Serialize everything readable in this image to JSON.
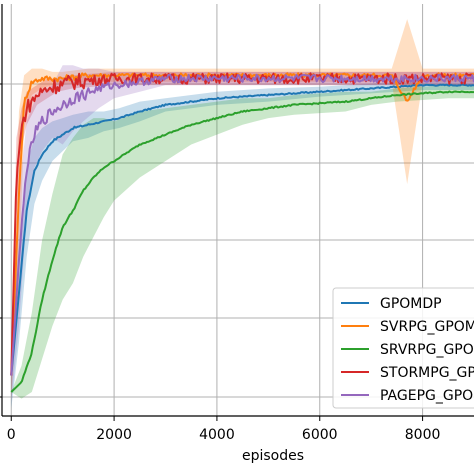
{
  "chart_data": {
    "type": "line",
    "title": "",
    "xlabel": "episodes",
    "ylabel": "",
    "xlim": [
      -180,
      9000
    ],
    "ylim": [
      0,
      100
    ],
    "x_ticks": [
      0,
      2000,
      4000,
      6000,
      8000
    ],
    "x_tick_labels": [
      "0",
      "2000",
      "4000",
      "6000",
      "8000"
    ],
    "grid": true,
    "legend_position": "bottom-right",
    "series": [
      {
        "name": "GPOMDP",
        "color": "#1f77b4",
        "x": [
          0,
          150,
          300,
          450,
          600,
          800,
          1000,
          1200,
          1500,
          1800,
          2100,
          2500,
          3000,
          3500,
          4000,
          5000,
          6000,
          7000,
          8000,
          9000
        ],
        "y": [
          5,
          30,
          55,
          67,
          72,
          76,
          78,
          80,
          81,
          82,
          83,
          85,
          87,
          88,
          89,
          90,
          91,
          92,
          93,
          93
        ],
        "band": [
          10,
          15,
          14,
          10,
          8,
          6,
          5,
          4,
          4,
          3,
          3,
          3,
          2,
          2,
          2,
          2,
          1.5,
          1.5,
          1.5,
          1.5
        ]
      },
      {
        "name": "SVRPG_GPOMDP",
        "color": "#ff7f0e",
        "x": [
          0,
          150,
          250,
          400,
          600,
          800,
          1000,
          1500,
          2000,
          3000,
          4000,
          5000,
          6000,
          7000,
          7400,
          7700,
          8000,
          8500,
          9000
        ],
        "y": [
          5,
          60,
          88,
          94,
          95,
          95,
          95,
          96,
          96,
          96,
          96,
          96,
          96,
          96,
          96,
          88,
          96,
          96,
          96
        ],
        "band": [
          8,
          25,
          8,
          4,
          3,
          2,
          2,
          2,
          2,
          2,
          2,
          2,
          2,
          2,
          2,
          25,
          2,
          2,
          2
        ]
      },
      {
        "name": "SRVRPG_GPOMDP",
        "color": "#2ca02c",
        "x": [
          0,
          200,
          400,
          600,
          800,
          1000,
          1200,
          1400,
          1600,
          1800,
          2000,
          2500,
          3000,
          3500,
          4000,
          4500,
          5000,
          5500,
          6000,
          6500,
          7000,
          7500,
          8000,
          8500,
          9000
        ],
        "y": [
          0,
          3,
          12,
          28,
          40,
          50,
          55,
          61,
          65,
          68,
          70,
          75,
          78,
          81,
          83,
          85,
          86,
          87,
          87.5,
          88,
          89,
          90,
          90.5,
          91,
          91
        ],
        "band": [
          0,
          5,
          12,
          18,
          20,
          22,
          22,
          20,
          18,
          15,
          12,
          10,
          8,
          6,
          5,
          4,
          3,
          3,
          3,
          3,
          2,
          2,
          2,
          2,
          2
        ]
      },
      {
        "name": "STORMPG_GPOMDP",
        "color": "#d62728",
        "x": [
          0,
          100,
          200,
          300,
          400,
          500,
          700,
          900,
          1200,
          1600,
          2000,
          3000,
          4000,
          5000,
          6000,
          7000,
          8000,
          9000
        ],
        "y": [
          5,
          65,
          80,
          86,
          88,
          90,
          92,
          93,
          94,
          94.5,
          95,
          95,
          95,
          95,
          95,
          95,
          95,
          95
        ],
        "band": [
          5,
          12,
          6,
          5,
          4,
          3,
          3,
          2,
          2,
          2,
          2,
          2,
          2,
          2,
          2,
          2,
          2,
          2
        ]
      },
      {
        "name": "PAGEPG_GPOMDP",
        "color": "#9467bd",
        "x": [
          0,
          150,
          300,
          450,
          600,
          800,
          1000,
          1200,
          1400,
          1700,
          2000,
          2500,
          3000,
          4000,
          5000,
          6000,
          7000,
          8000,
          9000
        ],
        "y": [
          5,
          40,
          68,
          78,
          82,
          85,
          87,
          89,
          90,
          92,
          93,
          94,
          95,
          95,
          95,
          95,
          95,
          95,
          95
        ],
        "band": [
          8,
          20,
          14,
          10,
          9,
          8,
          12,
          10,
          8,
          6,
          4,
          3,
          2,
          2,
          2,
          2,
          2,
          2,
          2
        ]
      }
    ]
  }
}
